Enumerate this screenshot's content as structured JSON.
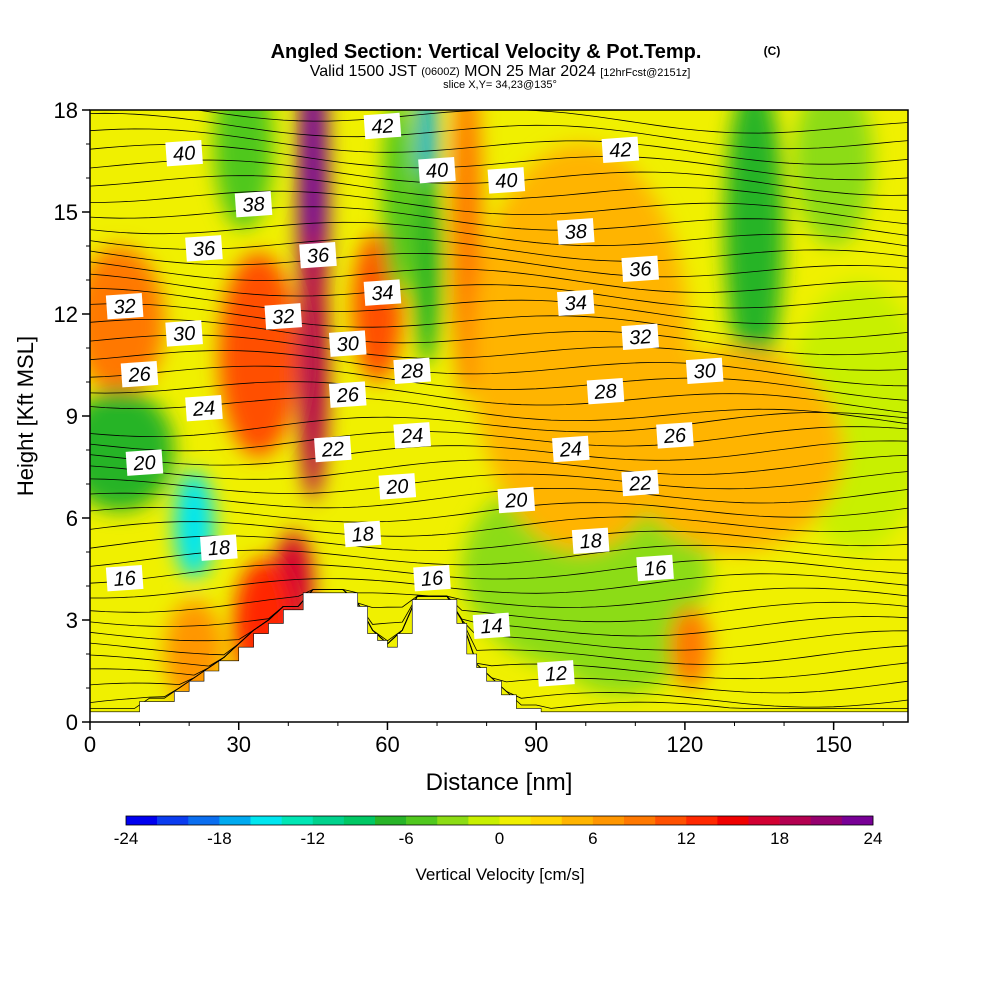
{
  "chart_data": {
    "type": "heatmap",
    "title": "Angled Section: Vertical Velocity & Pot.Temp.",
    "title_units": "(C)",
    "subtitle": {
      "prefix": "Valid 1500 JST",
      "utc": "(0600Z)",
      "date": "MON 25 Mar 2024",
      "fcst": "[12hrFcst@2151z]"
    },
    "slice_label": "slice X,Y= 34,23@135°",
    "xlabel": "Distance [nm]",
    "ylabel": "Height [Kft MSL]",
    "xlim": [
      0,
      165
    ],
    "ylim": [
      0,
      18
    ],
    "x_ticks": [
      0,
      30,
      60,
      90,
      120,
      150
    ],
    "y_ticks": [
      0,
      3,
      6,
      9,
      12,
      15,
      18
    ],
    "colorbar": {
      "label": "Vertical Velocity [cm/s]",
      "min": -24,
      "max": 24,
      "tick_labels": [
        "-24",
        "-18",
        "-12",
        "-6",
        "0",
        "6",
        "12",
        "18",
        "24"
      ],
      "colors": [
        "#0000f0",
        "#0a3cf0",
        "#0a6ef0",
        "#00aaf0",
        "#00e6f0",
        "#00e6b4",
        "#00d28c",
        "#00c864",
        "#28b428",
        "#50c81e",
        "#8cdc14",
        "#c8f000",
        "#f0f000",
        "#ffd700",
        "#ffb400",
        "#ff9600",
        "#ff7800",
        "#ff5000",
        "#ff2800",
        "#f00000",
        "#d20032",
        "#b40050",
        "#96006e",
        "#780096"
      ]
    },
    "theta_contours": [
      12,
      14,
      16,
      18,
      20,
      22,
      24,
      26,
      28,
      30,
      32,
      34,
      36,
      38,
      40,
      42
    ],
    "theta_labels": [
      {
        "text": "42",
        "x": 59,
        "y": 17.5
      },
      {
        "text": "40",
        "x": 19,
        "y": 16.7
      },
      {
        "text": "40",
        "x": 70,
        "y": 16.2
      },
      {
        "text": "40",
        "x": 84,
        "y": 15.9
      },
      {
        "text": "42",
        "x": 107,
        "y": 16.8
      },
      {
        "text": "38",
        "x": 33,
        "y": 15.2
      },
      {
        "text": "38",
        "x": 98,
        "y": 14.4
      },
      {
        "text": "36",
        "x": 23,
        "y": 13.9
      },
      {
        "text": "36",
        "x": 46,
        "y": 13.7
      },
      {
        "text": "36",
        "x": 111,
        "y": 13.3
      },
      {
        "text": "34",
        "x": 59,
        "y": 12.6
      },
      {
        "text": "34",
        "x": 98,
        "y": 12.3
      },
      {
        "text": "32",
        "x": 7,
        "y": 12.2
      },
      {
        "text": "32",
        "x": 39,
        "y": 11.9
      },
      {
        "text": "32",
        "x": 111,
        "y": 11.3
      },
      {
        "text": "30",
        "x": 19,
        "y": 11.4
      },
      {
        "text": "30",
        "x": 52,
        "y": 11.1
      },
      {
        "text": "30",
        "x": 124,
        "y": 10.3
      },
      {
        "text": "28",
        "x": 65,
        "y": 10.3
      },
      {
        "text": "28",
        "x": 104,
        "y": 9.7
      },
      {
        "text": "26",
        "x": 10,
        "y": 10.2
      },
      {
        "text": "26",
        "x": 52,
        "y": 9.6
      },
      {
        "text": "26",
        "x": 118,
        "y": 8.4
      },
      {
        "text": "24",
        "x": 23,
        "y": 9.2
      },
      {
        "text": "24",
        "x": 65,
        "y": 8.4
      },
      {
        "text": "24",
        "x": 97,
        "y": 8.0
      },
      {
        "text": "22",
        "x": 49,
        "y": 8.0
      },
      {
        "text": "22",
        "x": 111,
        "y": 7.0
      },
      {
        "text": "20",
        "x": 11,
        "y": 7.6
      },
      {
        "text": "20",
        "x": 62,
        "y": 6.9
      },
      {
        "text": "20",
        "x": 86,
        "y": 6.5
      },
      {
        "text": "18",
        "x": 55,
        "y": 5.5
      },
      {
        "text": "18",
        "x": 26,
        "y": 5.1
      },
      {
        "text": "18",
        "x": 101,
        "y": 5.3
      },
      {
        "text": "16",
        "x": 7,
        "y": 4.2
      },
      {
        "text": "16",
        "x": 69,
        "y": 4.2
      },
      {
        "text": "16",
        "x": 114,
        "y": 4.5
      },
      {
        "text": "14",
        "x": 81,
        "y": 2.8
      },
      {
        "text": "12",
        "x": 94,
        "y": 1.4
      }
    ],
    "terrain_step_profile": [
      [
        0,
        0.3
      ],
      [
        10,
        0.6
      ],
      [
        17,
        0.9
      ],
      [
        20,
        1.2
      ],
      [
        23,
        1.5
      ],
      [
        26,
        1.8
      ],
      [
        30,
        2.2
      ],
      [
        33,
        2.6
      ],
      [
        36,
        2.9
      ],
      [
        39,
        3.3
      ],
      [
        43,
        3.8
      ],
      [
        52,
        3.8
      ],
      [
        54,
        3.4
      ],
      [
        56,
        2.6
      ],
      [
        58,
        2.4
      ],
      [
        60,
        2.2
      ],
      [
        62,
        2.6
      ],
      [
        65,
        3.6
      ],
      [
        72,
        3.6
      ],
      [
        74,
        2.9
      ],
      [
        76,
        2.0
      ],
      [
        78,
        1.6
      ],
      [
        80,
        1.2
      ],
      [
        83,
        0.8
      ],
      [
        86,
        0.4
      ],
      [
        91,
        0.3
      ],
      [
        165,
        0.3
      ]
    ],
    "vertical_velocity_features": [
      {
        "x": 45,
        "y": 15.5,
        "w": 3,
        "h": 5.5,
        "v": 24
      },
      {
        "x": 45,
        "y": 10.5,
        "w": 3,
        "h": 4.0,
        "v": 18
      },
      {
        "x": 34,
        "y": 10.8,
        "w": 8,
        "h": 3.0,
        "v": 10
      },
      {
        "x": 6,
        "y": 11.8,
        "w": 9,
        "h": 2.2,
        "v": 8
      },
      {
        "x": 41,
        "y": 4.0,
        "w": 4,
        "h": 1.6,
        "v": 17
      },
      {
        "x": 35,
        "y": 2.8,
        "w": 6,
        "h": 2.0,
        "v": 12
      },
      {
        "x": 21,
        "y": 2.0,
        "w": 6,
        "h": 1.6,
        "v": 6
      },
      {
        "x": 58,
        "y": 12.2,
        "w": 5,
        "h": 2.2,
        "v": 10
      },
      {
        "x": 68,
        "y": 16.5,
        "w": 2,
        "h": 3.5,
        "v": -17
      },
      {
        "x": 68,
        "y": 13.5,
        "w": 3,
        "h": 3.0,
        "v": -8
      },
      {
        "x": 62,
        "y": 15.5,
        "w": 3,
        "h": 3.0,
        "v": -6
      },
      {
        "x": 76,
        "y": 14.5,
        "w": 3,
        "h": 5.0,
        "v": 9
      },
      {
        "x": 21,
        "y": 5.8,
        "w": 4,
        "h": 1.6,
        "v": -15
      },
      {
        "x": 6,
        "y": 8.0,
        "w": 11,
        "h": 1.8,
        "v": -8
      },
      {
        "x": 31,
        "y": 17.0,
        "w": 6,
        "h": 2.5,
        "v": -6
      },
      {
        "x": 134,
        "y": 14.5,
        "w": 6,
        "h": 4.5,
        "v": -7
      },
      {
        "x": 150,
        "y": 16.5,
        "w": 8,
        "h": 2.5,
        "v": -4
      },
      {
        "x": 155,
        "y": 9.0,
        "w": 14,
        "h": 4.0,
        "v": -2
      },
      {
        "x": 100,
        "y": 4.5,
        "w": 25,
        "h": 3.0,
        "v": -3
      },
      {
        "x": 107,
        "y": 2.8,
        "w": 15,
        "h": 2.0,
        "v": -4
      },
      {
        "x": 121,
        "y": 2.2,
        "w": 4,
        "h": 1.2,
        "v": 9
      },
      {
        "x": 99,
        "y": 11.0,
        "w": 22,
        "h": 6.0,
        "v": 5
      },
      {
        "x": 130,
        "y": 8.0,
        "w": 22,
        "h": 3.0,
        "v": 4
      }
    ]
  }
}
